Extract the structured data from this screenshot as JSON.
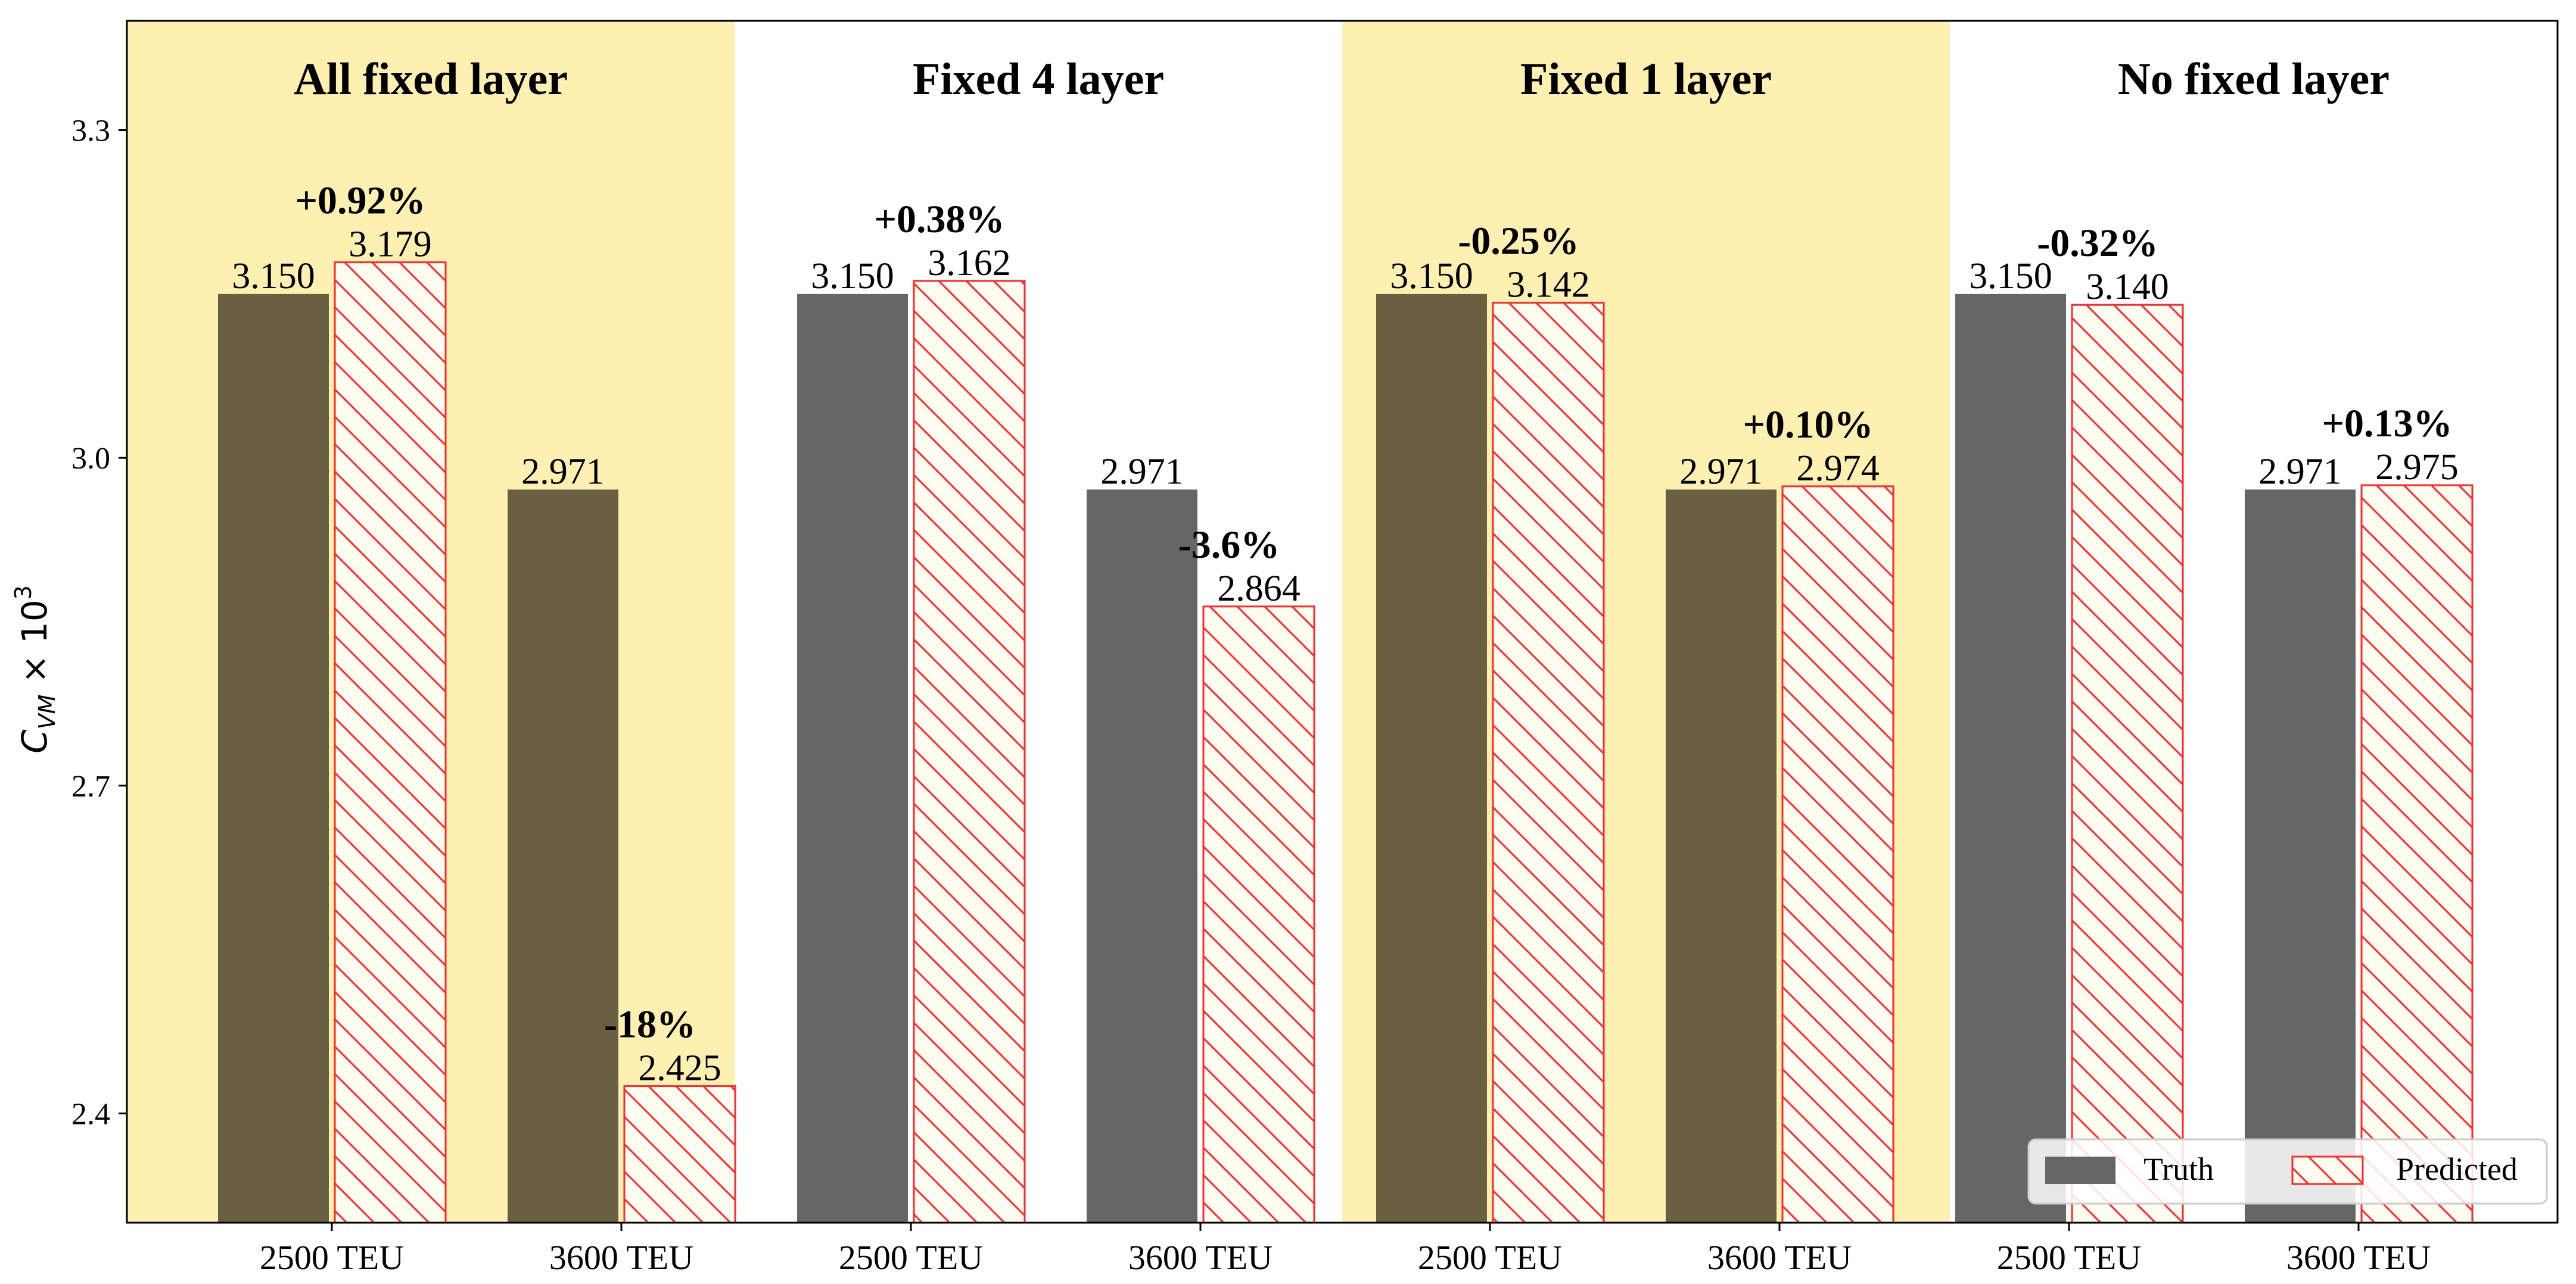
{
  "chart_data": {
    "type": "bar",
    "ylabel_base": "C",
    "ylabel_sub": "VM",
    "ylabel_rest": " × 10",
    "ylabel_sup": "3",
    "ylim": [
      2.3,
      3.4
    ],
    "yticks": [
      "2.4",
      "2.7",
      "3.0",
      "3.3"
    ],
    "ytick_values": [
      2.4,
      2.7,
      3.0,
      3.3
    ],
    "categories": [
      "2500 TEU",
      "3600 TEU"
    ],
    "legend": {
      "truth": "Truth",
      "predicted": "Predicted",
      "position": "bottom-right"
    },
    "groups": [
      {
        "title": "All fixed layer",
        "highlight": true,
        "truth": [
          3.15,
          2.971
        ],
        "truth_labels": [
          "3.150",
          "2.971"
        ],
        "predicted": [
          3.179,
          2.425
        ],
        "predicted_labels": [
          "3.179",
          "2.425"
        ],
        "errors": [
          "+0.92%",
          "-18%"
        ]
      },
      {
        "title": "Fixed 4 layer",
        "highlight": false,
        "truth": [
          3.15,
          2.971
        ],
        "truth_labels": [
          "3.150",
          "2.971"
        ],
        "predicted": [
          3.162,
          2.864
        ],
        "predicted_labels": [
          "3.162",
          "2.864"
        ],
        "errors": [
          "+0.38%",
          "-3.6%"
        ]
      },
      {
        "title": "Fixed 1 layer",
        "highlight": true,
        "truth": [
          3.15,
          2.971
        ],
        "truth_labels": [
          "3.150",
          "2.971"
        ],
        "predicted": [
          3.142,
          2.974
        ],
        "predicted_labels": [
          "3.142",
          "2.974"
        ],
        "errors": [
          "-0.25%",
          "+0.10%"
        ]
      },
      {
        "title": "No fixed layer",
        "highlight": false,
        "truth": [
          3.15,
          2.971
        ],
        "truth_labels": [
          "3.150",
          "2.971"
        ],
        "predicted": [
          3.14,
          2.975
        ],
        "predicted_labels": [
          "3.140",
          "2.975"
        ],
        "errors": [
          "-0.32%",
          "+0.13%"
        ]
      }
    ],
    "colors": {
      "highlight_bg": "#fdf0b1",
      "truth_on_highlight": "#686040",
      "truth_default": "#666666",
      "predicted_edge": "#ff2a2a",
      "predicted_fill": "#fffdf2"
    }
  }
}
